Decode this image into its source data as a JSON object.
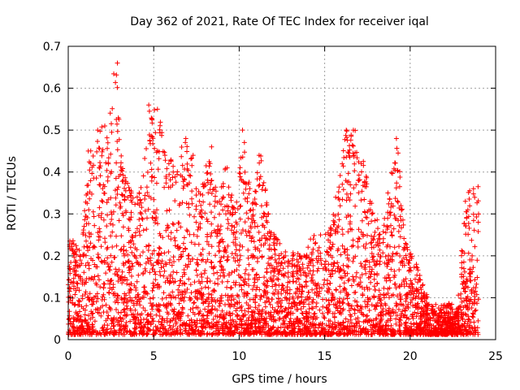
{
  "chart_data": {
    "type": "scatter",
    "title": "Day 362 of 2021, Rate Of TEC Index for receiver iqal",
    "xlabel": "GPS time / hours",
    "ylabel": "ROTI / TECUs",
    "xlim": [
      0,
      25
    ],
    "ylim": [
      0,
      0.7
    ],
    "xticks": [
      "0",
      "5",
      "10",
      "15",
      "20",
      "25"
    ],
    "yticks": [
      "0",
      "0.1",
      "0.2",
      "0.3",
      "0.4",
      "0.5",
      "0.6",
      "0.7"
    ],
    "marker": "+",
    "color": "#ff0000",
    "grid": true,
    "series": [
      {
        "name": "ROTI",
        "note": "approximate peak ROTI envelope in 0.5 h bins (data units)",
        "x": [
          0.25,
          0.75,
          1.25,
          1.75,
          2.25,
          2.75,
          3.25,
          3.75,
          4.25,
          4.75,
          5.25,
          5.75,
          6.25,
          6.75,
          7.25,
          7.75,
          8.25,
          8.75,
          9.25,
          9.75,
          10.25,
          10.75,
          11.25,
          11.75,
          12.25,
          12.75,
          13.25,
          13.75,
          14.25,
          14.75,
          15.25,
          15.75,
          16.25,
          16.75,
          17.25,
          17.75,
          18.25,
          18.75,
          19.25,
          19.75,
          20.25,
          20.75,
          21.25,
          21.75,
          22.25,
          22.75,
          23.25,
          23.75
        ],
        "y": [
          0.23,
          0.2,
          0.45,
          0.5,
          0.51,
          0.66,
          0.38,
          0.35,
          0.35,
          0.56,
          0.55,
          0.44,
          0.4,
          0.48,
          0.44,
          0.33,
          0.46,
          0.33,
          0.41,
          0.3,
          0.5,
          0.31,
          0.44,
          0.28,
          0.24,
          0.2,
          0.2,
          0.2,
          0.24,
          0.25,
          0.25,
          0.34,
          0.5,
          0.5,
          0.42,
          0.33,
          0.25,
          0.35,
          0.48,
          0.22,
          0.18,
          0.12,
          0.08,
          0.07,
          0.08,
          0.06,
          0.33,
          0.36
        ]
      }
    ]
  }
}
